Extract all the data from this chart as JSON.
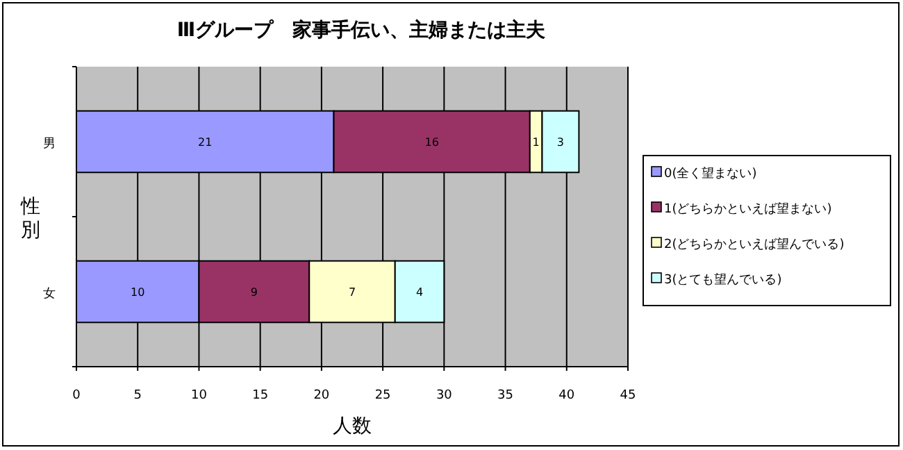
{
  "chart_data": {
    "type": "bar",
    "orientation": "horizontal",
    "stacked": true,
    "title": "Ⅲグループ　家事手伝い、主婦または主夫",
    "xlabel": "人数",
    "ylabel": "性別",
    "categories": [
      "男",
      "女"
    ],
    "series": [
      {
        "name": "0(全く望まない)",
        "color": "#9999ff",
        "values": [
          21,
          10
        ]
      },
      {
        "name": "1(どちらかといえば望まない)",
        "color": "#993366",
        "values": [
          16,
          9
        ]
      },
      {
        "name": "2(どちらかといえば望んでいる)",
        "color": "#ffffcc",
        "values": [
          1,
          7
        ]
      },
      {
        "name": "3(とても望んでいる)",
        "color": "#ccffff",
        "values": [
          3,
          4
        ]
      }
    ],
    "xlim": [
      0,
      45
    ],
    "xticks": [
      0,
      5,
      10,
      15,
      20,
      25,
      30,
      35,
      40,
      45
    ],
    "grid": "x",
    "legend": "right",
    "data_labels": true
  }
}
